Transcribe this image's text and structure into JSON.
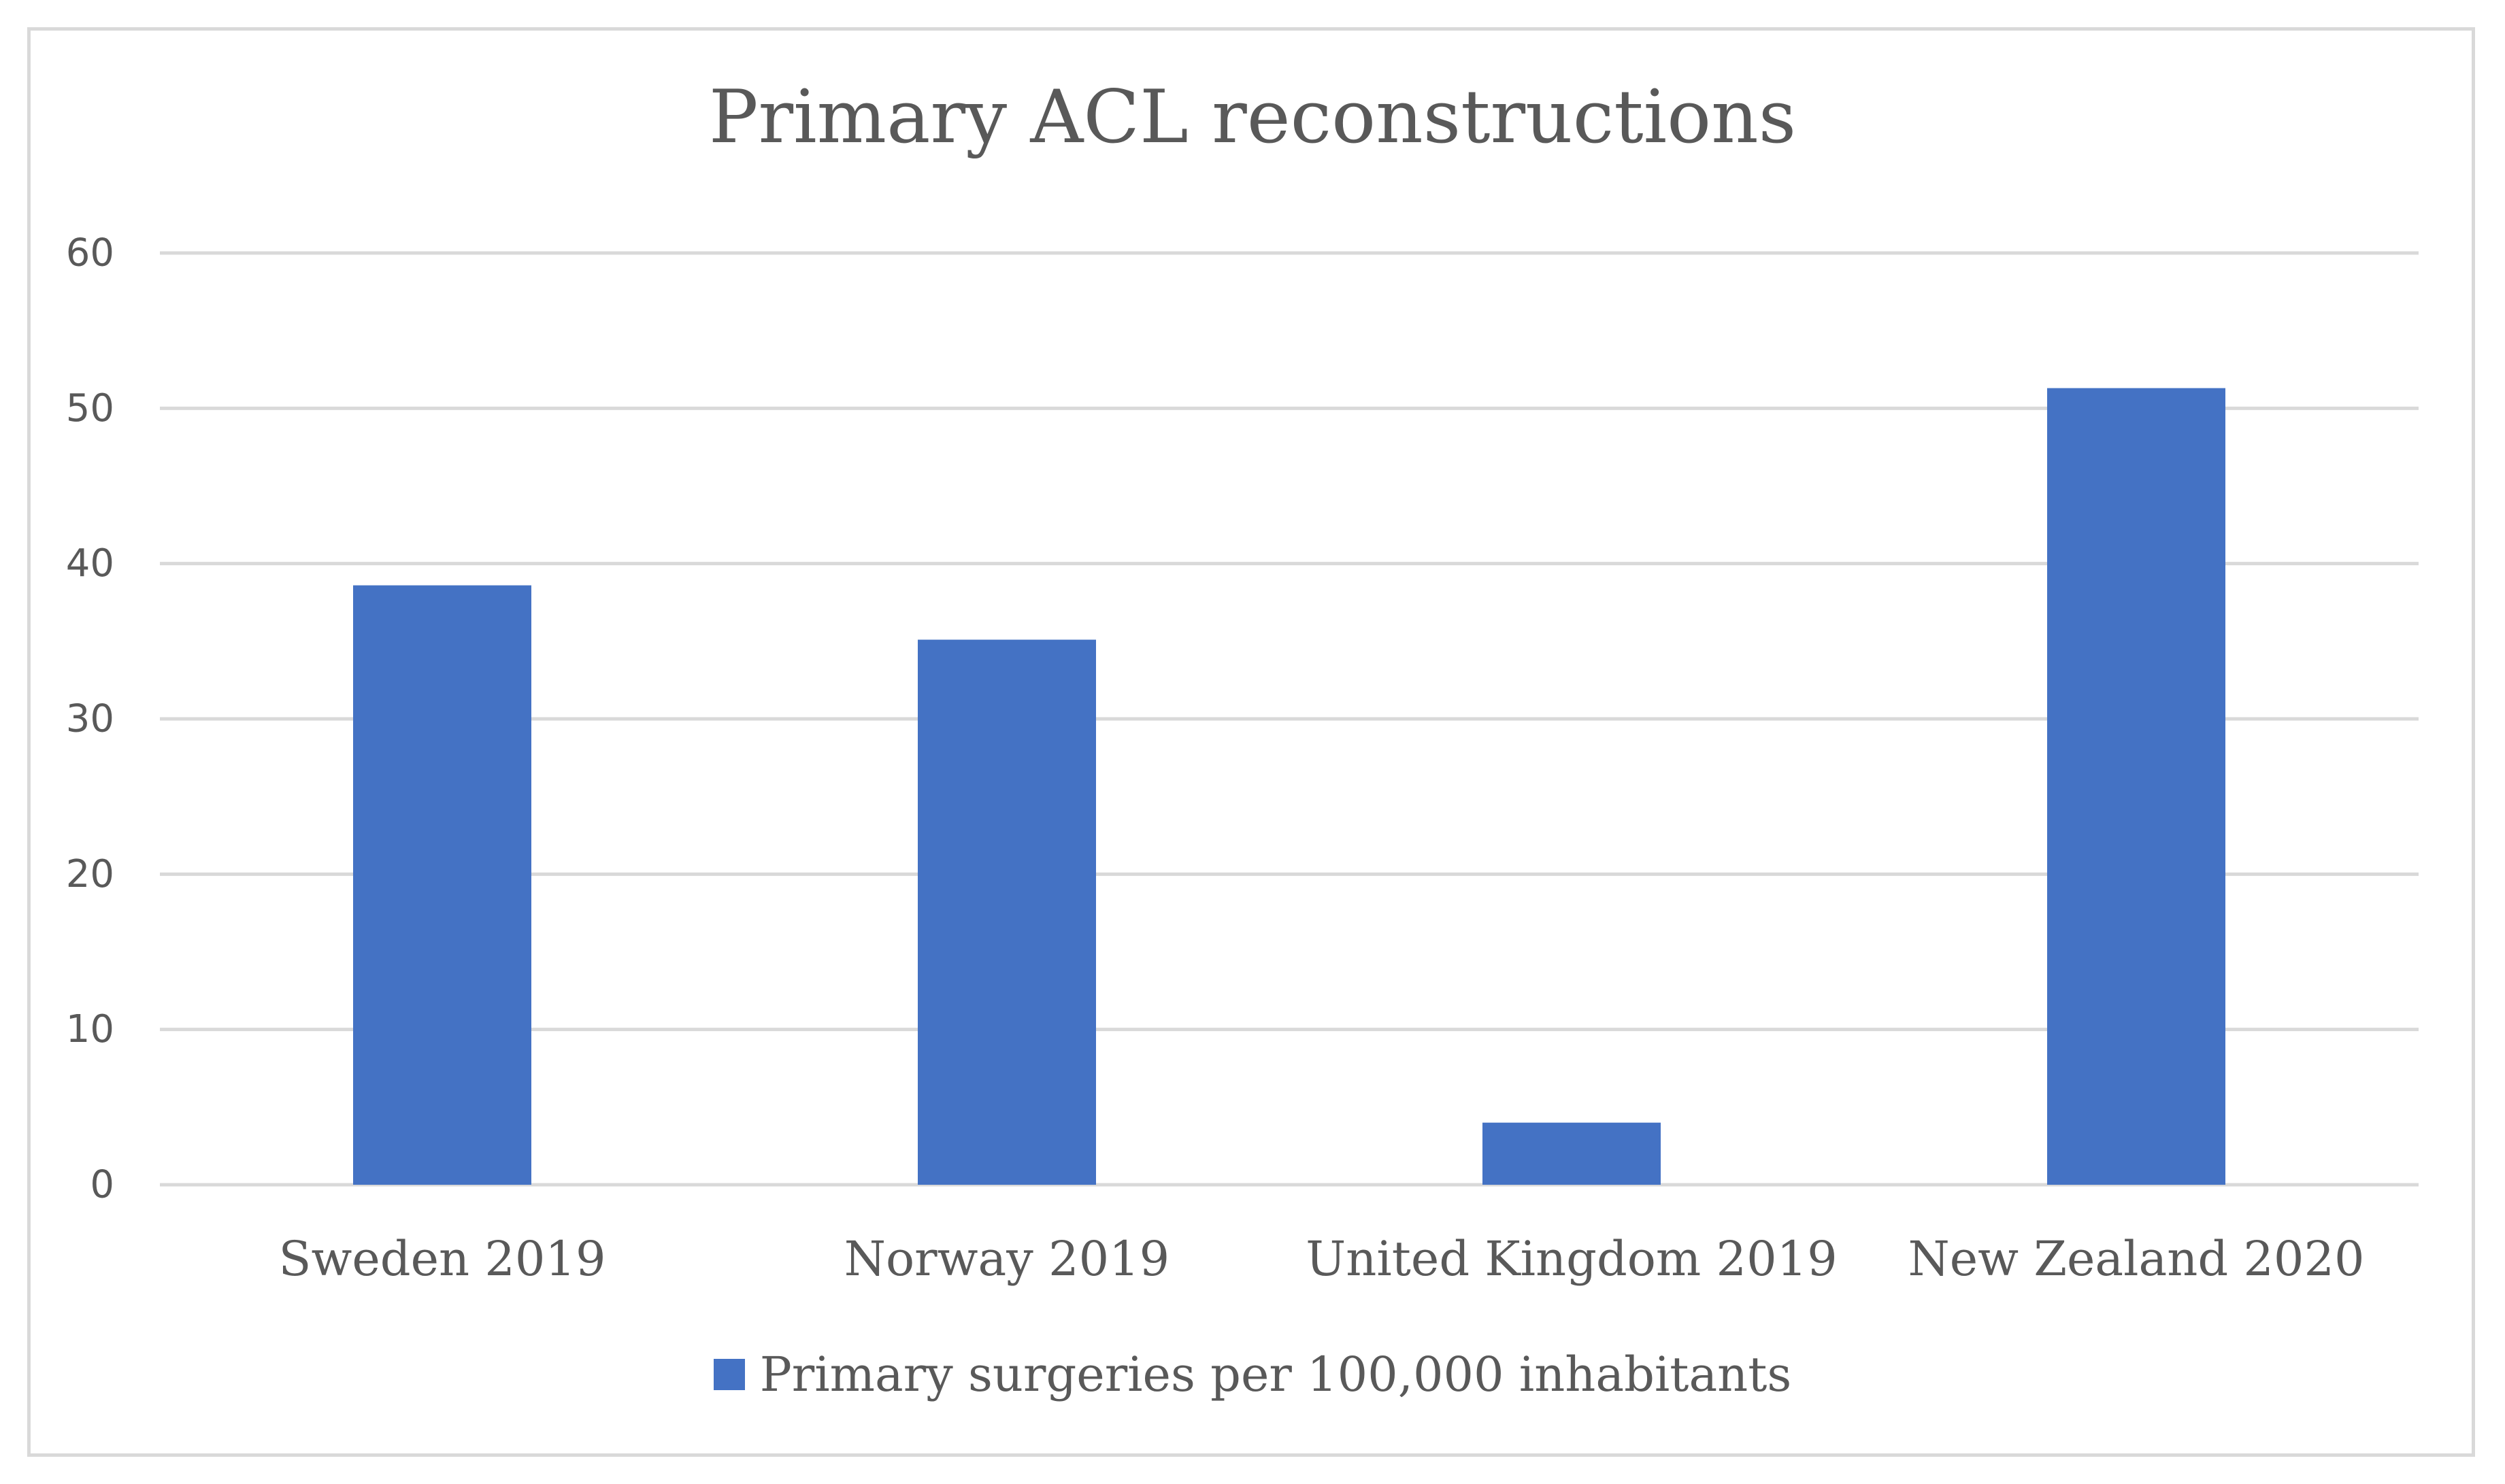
{
  "chart_data": {
    "type": "bar",
    "title": "Primary ACL reconstructions",
    "categories": [
      "Sweden 2019",
      "Norway 2019",
      "United Kingdom 2019",
      "New Zealand 2020"
    ],
    "series": [
      {
        "name": "Primary surgeries per 100,000 inhabitants",
        "values": [
          38.6,
          35.1,
          4.0,
          51.3
        ],
        "color": "#4472c4"
      }
    ],
    "ylim": [
      0,
      60
    ],
    "yticks": [
      0,
      10,
      20,
      30,
      40,
      50,
      60
    ],
    "xlabel": "",
    "ylabel": "",
    "grid": true,
    "legend_position": "bottom"
  }
}
